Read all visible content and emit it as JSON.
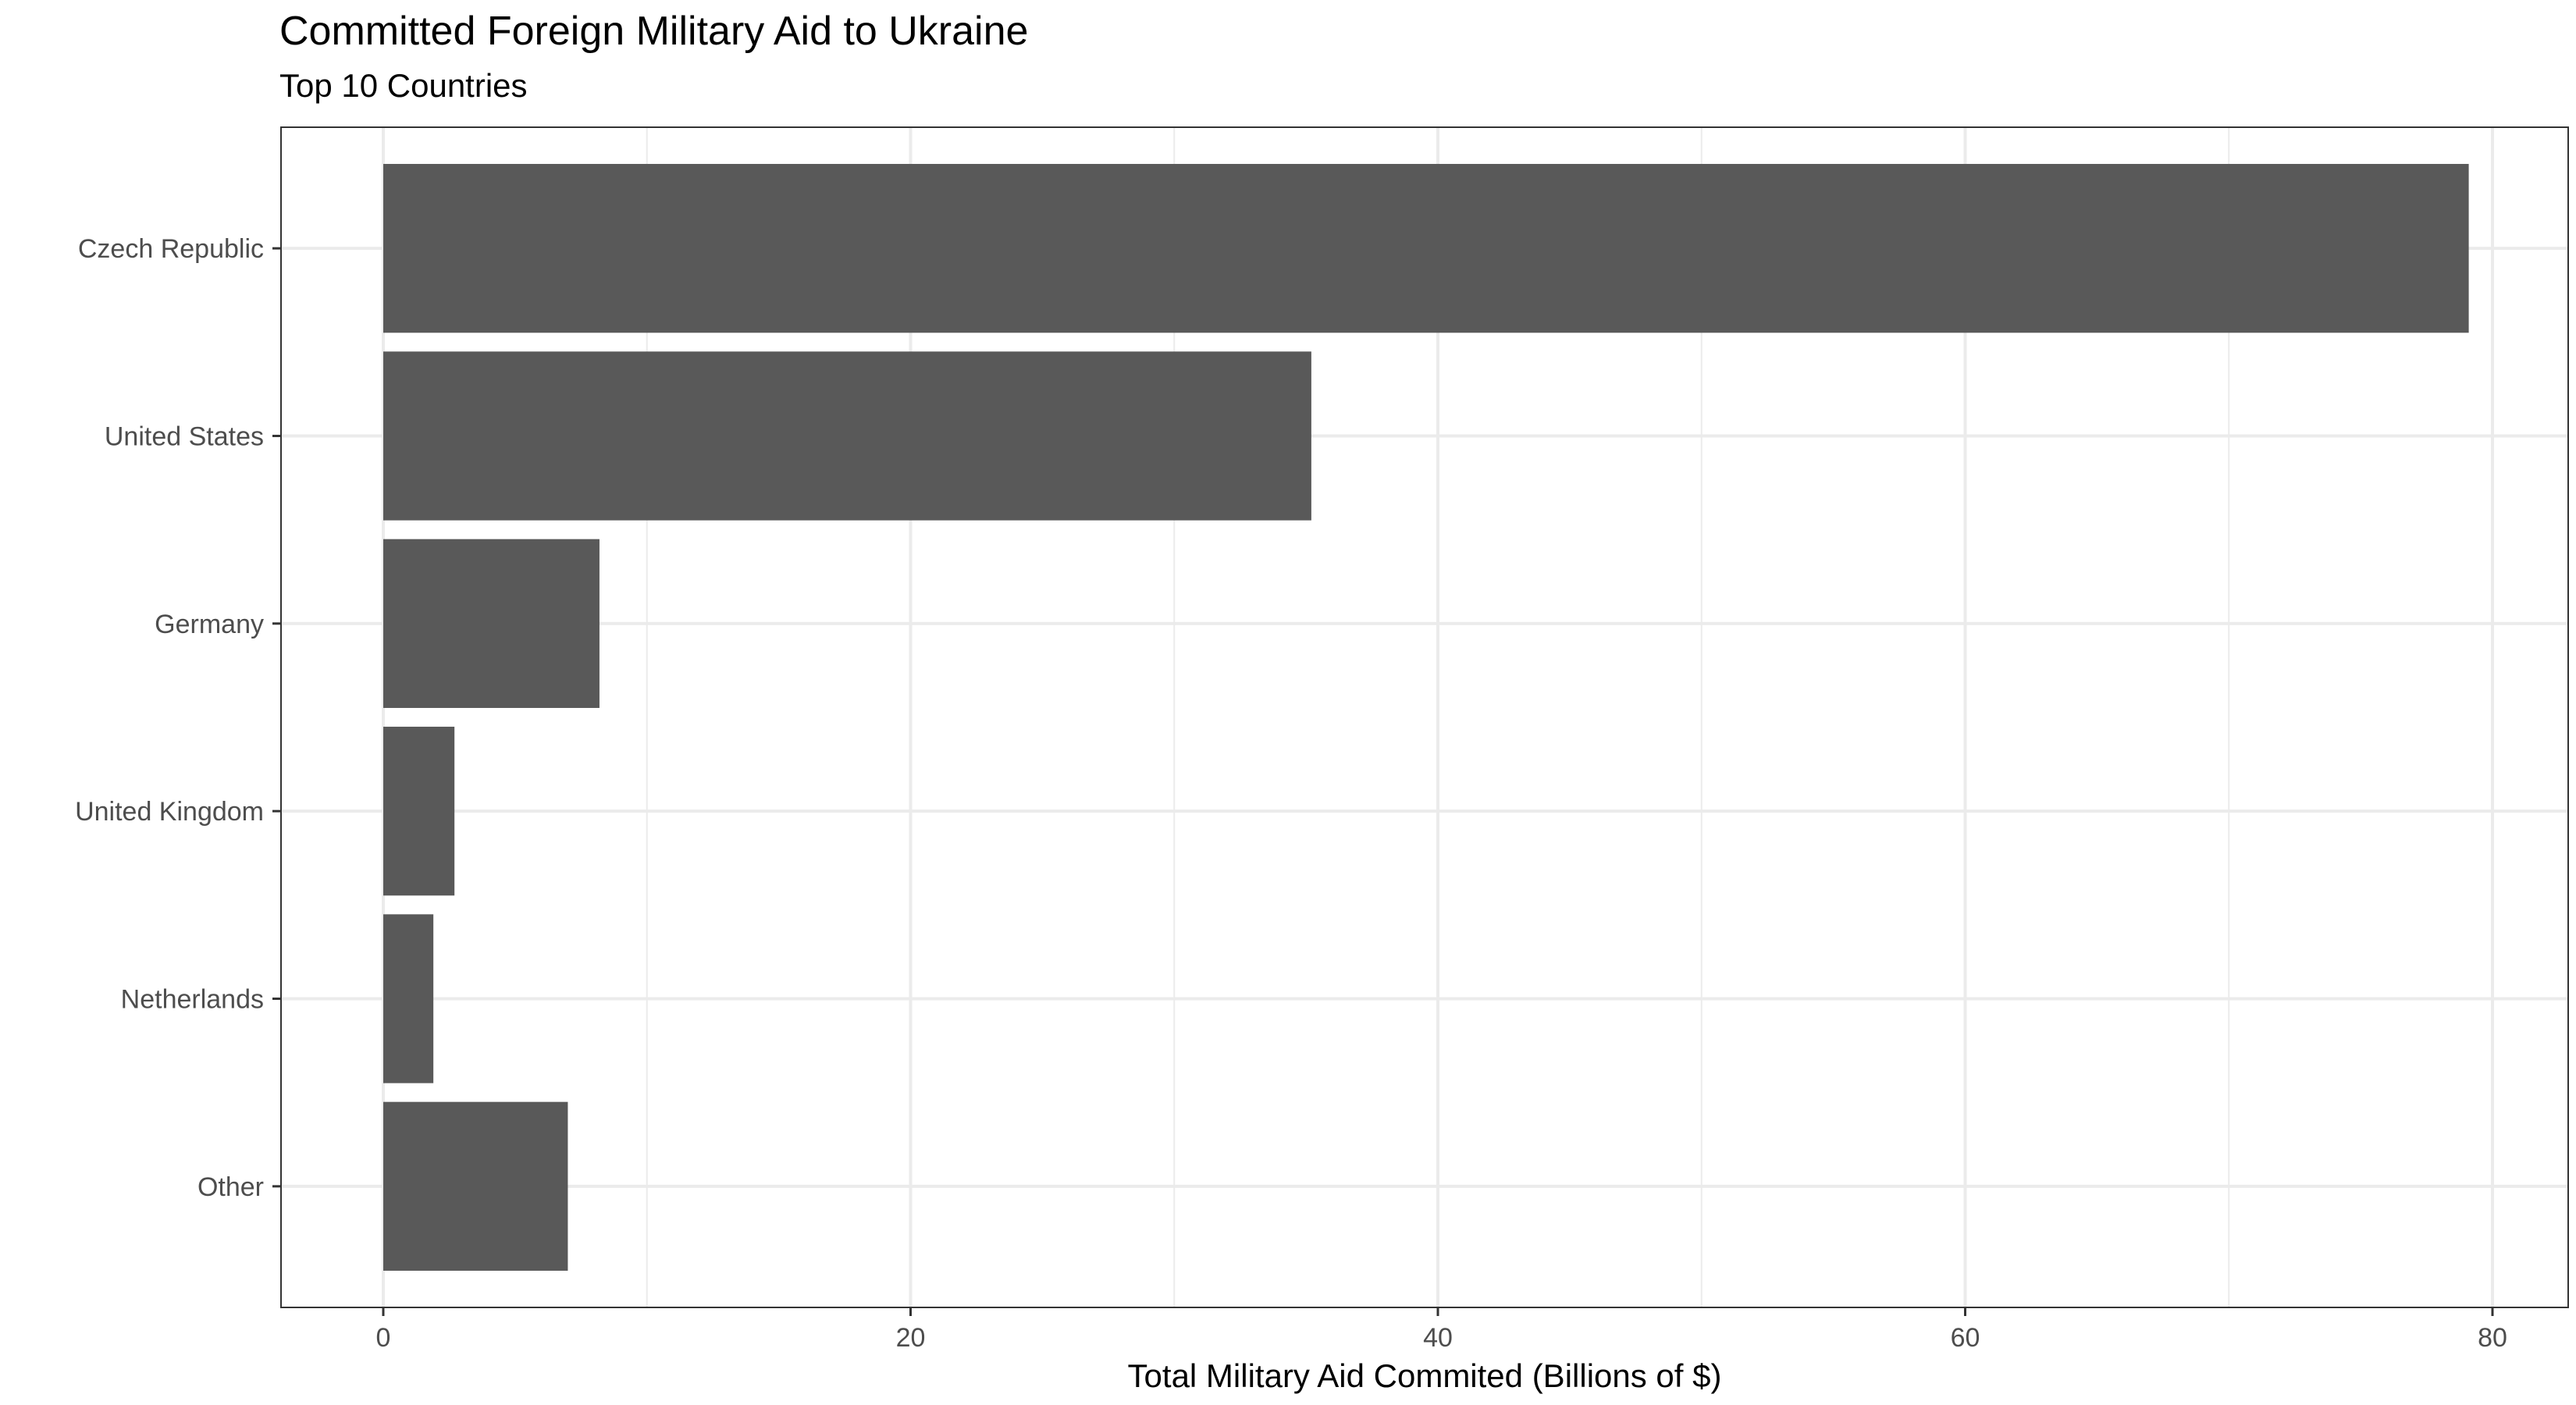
{
  "chart_data": {
    "type": "bar",
    "orientation": "horizontal",
    "title": "Committed Foreign Military Aid to Ukraine",
    "subtitle": "Top 10 Countries",
    "xlabel": "Total Military Aid Commited (Billions of $)",
    "ylabel": "",
    "categories": [
      "Czech Republic",
      "United States",
      "Germany",
      "United Kingdom",
      "Netherlands",
      "Other"
    ],
    "values": [
      79.1,
      35.2,
      8.2,
      2.7,
      1.9,
      7.0
    ],
    "xlim": [
      0,
      80
    ],
    "xticks": [
      0,
      20,
      40,
      60,
      80
    ],
    "grid": true,
    "legend": "none",
    "bar_color": "#595959",
    "background": "#ffffff",
    "grid_color": "#ebebeb"
  }
}
